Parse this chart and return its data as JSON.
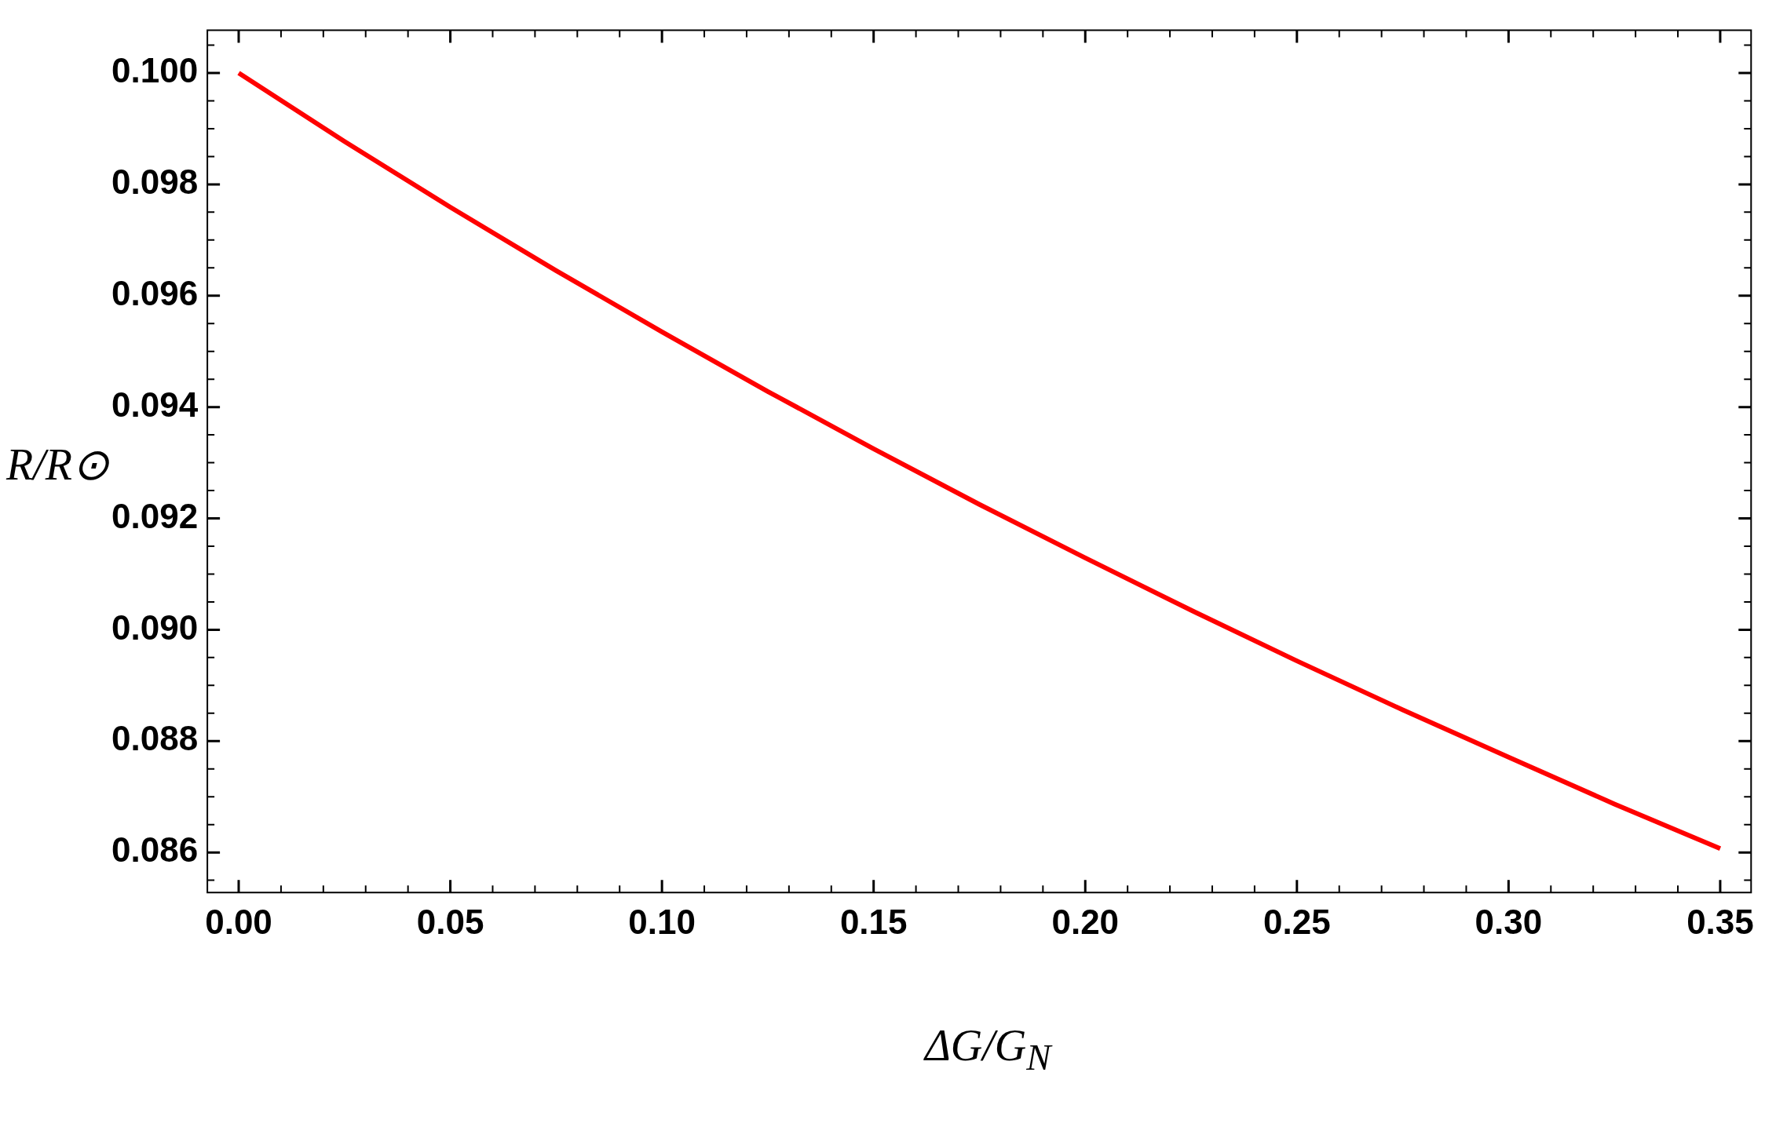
{
  "chart_data": {
    "type": "line",
    "xlabel": "ΔG/G$_{N}$",
    "ylabel": "R/R⊙",
    "x": [
      0,
      0.025,
      0.05,
      0.075,
      0.1,
      0.125,
      0.15,
      0.175,
      0.2,
      0.225,
      0.25,
      0.275,
      0.3,
      0.325,
      0.35
    ],
    "series": [
      {
        "color": "#ff0000",
        "values": [
          0.1,
          0.09877,
          0.09759,
          0.09645,
          0.09535,
          0.09428,
          0.09325,
          0.09225,
          0.09129,
          0.09035,
          0.08944,
          0.08856,
          0.08771,
          0.08687,
          0.08607
        ]
      }
    ],
    "xlim": [
      -0.0074,
      0.3573
    ],
    "ylim": [
      0.08528,
      0.10077
    ],
    "xticks": [
      {
        "value": 0,
        "label": "0.00"
      },
      {
        "value": 0.01,
        "label": null
      },
      {
        "value": 0.02,
        "label": null
      },
      {
        "value": 0.03,
        "label": null
      },
      {
        "value": 0.04,
        "label": null
      },
      0.05,
      {
        "value": 0.06,
        "label": null
      },
      {
        "value": 0.07,
        "label": null
      },
      {
        "value": 0.08,
        "label": null
      },
      {
        "value": 0.09,
        "label": null
      },
      {
        "value": 0.1,
        "label": "0.10"
      },
      {
        "value": 0.11,
        "label": null
      },
      {
        "value": 0.12,
        "label": null
      },
      {
        "value": 0.13,
        "label": null
      },
      {
        "value": 0.14,
        "label": null
      },
      0.15,
      {
        "value": 0.16,
        "label": null
      },
      {
        "value": 0.17,
        "label": null
      },
      {
        "value": 0.18,
        "label": null
      },
      {
        "value": 0.19,
        "label": null
      },
      {
        "value": 0.2,
        "label": "0.20"
      },
      {
        "value": 0.21,
        "label": null
      },
      {
        "value": 0.22,
        "label": null
      },
      {
        "value": 0.23,
        "label": null
      },
      {
        "value": 0.24,
        "label": null
      },
      0.25,
      {
        "value": 0.26,
        "label": null
      },
      {
        "value": 0.27,
        "label": null
      },
      {
        "value": 0.28,
        "label": null
      },
      {
        "value": 0.29,
        "label": null
      },
      {
        "value": 0.3,
        "label": "0.30"
      },
      {
        "value": 0.31,
        "label": null
      },
      {
        "value": 0.32,
        "label": null
      },
      {
        "value": 0.33,
        "label": null
      },
      {
        "value": 0.34,
        "label": null
      },
      0.35
    ],
    "yticks": [
      {
        "value": 0.0855,
        "label": null
      },
      0.086,
      {
        "value": 0.0865,
        "label": null
      },
      {
        "value": 0.087,
        "label": null
      },
      {
        "value": 0.0875,
        "label": null
      },
      0.088,
      {
        "value": 0.0885,
        "label": null
      },
      {
        "value": 0.089,
        "label": null
      },
      {
        "value": 0.0895,
        "label": null
      },
      {
        "value": 0.09,
        "label": "0.090"
      },
      {
        "value": 0.0905,
        "label": null
      },
      {
        "value": 0.091,
        "label": null
      },
      {
        "value": 0.0915,
        "label": null
      },
      0.092,
      {
        "value": 0.0925,
        "label": null
      },
      {
        "value": 0.093,
        "label": null
      },
      {
        "value": 0.0935,
        "label": null
      },
      0.094,
      {
        "value": 0.0945,
        "label": null
      },
      {
        "value": 0.095,
        "label": null
      },
      {
        "value": 0.0955,
        "label": null
      },
      0.096,
      {
        "value": 0.0965,
        "label": null
      },
      {
        "value": 0.097,
        "label": null
      },
      {
        "value": 0.0975,
        "label": null
      },
      0.098,
      {
        "value": 0.0985,
        "label": null
      },
      {
        "value": 0.099,
        "label": null
      },
      {
        "value": 0.0995,
        "label": null
      },
      {
        "value": 0.1,
        "label": "0.100"
      },
      {
        "value": 0.1005,
        "label": null
      }
    ],
    "grid": false,
    "legend": false,
    "marker": "none",
    "line_style": "solid"
  }
}
